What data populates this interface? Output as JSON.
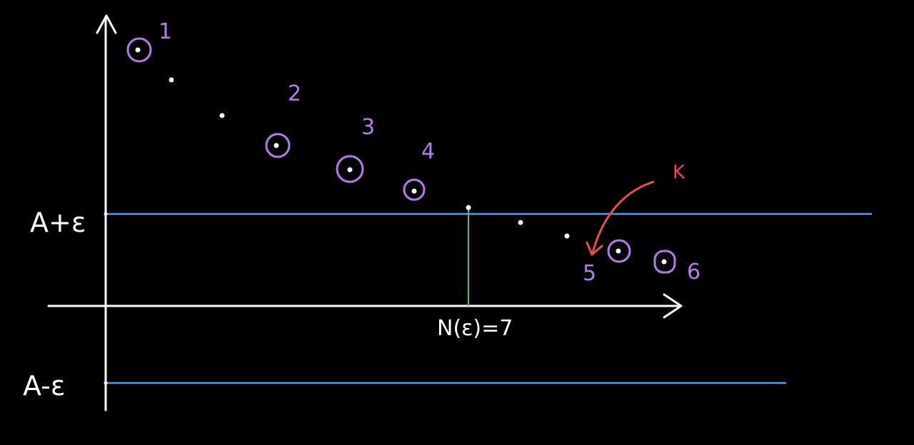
{
  "labels": {
    "upper_band": "A+ε",
    "lower_band": "A-ε",
    "threshold": "N(ε)=7",
    "subsequence_arrow": "K"
  },
  "marked_points": [
    "1",
    "2",
    "3",
    "4",
    "5",
    "6"
  ],
  "colors": {
    "background": "#000000",
    "axes": "#ffffff",
    "points": "#ffffff",
    "circles": "#b57be8",
    "band_lines": "#5b9bef",
    "threshold_line": "#4fc24f",
    "arrow": "#ef4a4a"
  }
}
